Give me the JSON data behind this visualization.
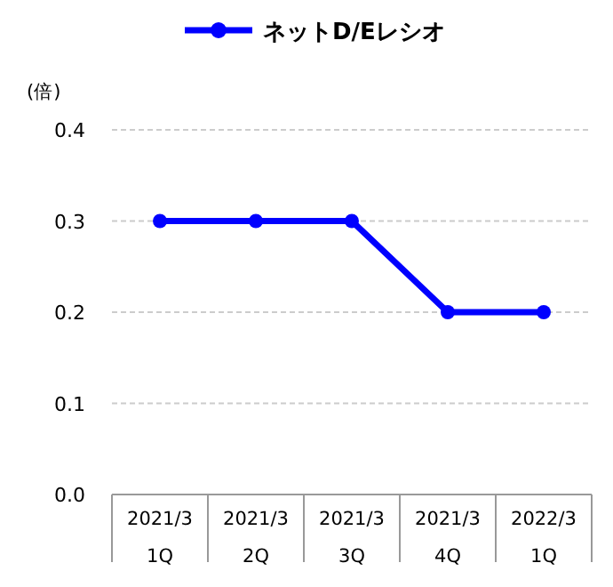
{
  "chart_data": {
    "type": "line",
    "categories": [
      "2021/3\n1Q",
      "2021/3\n2Q",
      "2021/3\n3Q",
      "2021/3\n4Q",
      "2022/3\n1Q"
    ],
    "series": [
      {
        "name": "ネットD/Eレシオ",
        "color": "#0000ff",
        "values": [
          0.3,
          0.3,
          0.3,
          0.2,
          0.2
        ]
      }
    ],
    "ylabel": "(倍)",
    "ylim": [
      0,
      0.4
    ],
    "yticks": [
      {
        "value": 0,
        "label": "0.0"
      },
      0.1,
      0.2,
      0.3,
      0.4
    ],
    "grid": "y",
    "legend": "top",
    "marker": "circle",
    "line_style": "solid"
  }
}
